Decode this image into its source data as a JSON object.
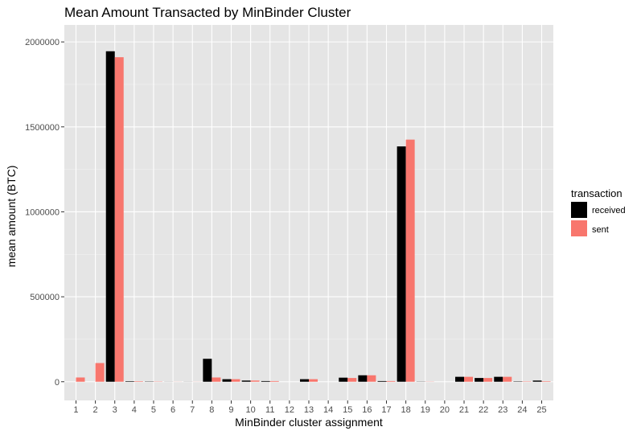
{
  "chart_data": {
    "type": "bar",
    "title": "Mean Amount Transacted by MinBinder Cluster",
    "xlabel": "MinBinder cluster assignment",
    "ylabel": "mean amount (BTC)",
    "categories": [
      "1",
      "2",
      "3",
      "4",
      "5",
      "6",
      "7",
      "8",
      "9",
      "10",
      "11",
      "12",
      "13",
      "14",
      "15",
      "16",
      "17",
      "18",
      "19",
      "20",
      "21",
      "22",
      "23",
      "24",
      "25"
    ],
    "series": [
      {
        "name": "received",
        "color": "#000000",
        "values": [
          0,
          0,
          1945000,
          3000,
          1500,
          500,
          500,
          135000,
          15000,
          7000,
          4000,
          0,
          15000,
          0,
          24000,
          38000,
          4000,
          1385000,
          1000,
          0,
          29000,
          22000,
          29000,
          2000,
          7000
        ]
      },
      {
        "name": "sent",
        "color": "#F8766D",
        "values": [
          25000,
          110000,
          1910000,
          3000,
          1500,
          500,
          500,
          25000,
          15000,
          7000,
          4000,
          0,
          15000,
          0,
          22000,
          38000,
          4000,
          1425000,
          1000,
          0,
          29000,
          22000,
          29000,
          2000,
          3000
        ]
      }
    ],
    "ylim": [
      -110000,
      2100000
    ],
    "yticks": [
      0,
      500000,
      1000000,
      1500000,
      2000000
    ],
    "ytick_labels": [
      "0",
      "500000",
      "1000000",
      "1500000",
      "2000000"
    ],
    "legend": {
      "title": "transaction",
      "position": "right"
    },
    "grid": true,
    "panel_background": "#E5E5E5"
  }
}
